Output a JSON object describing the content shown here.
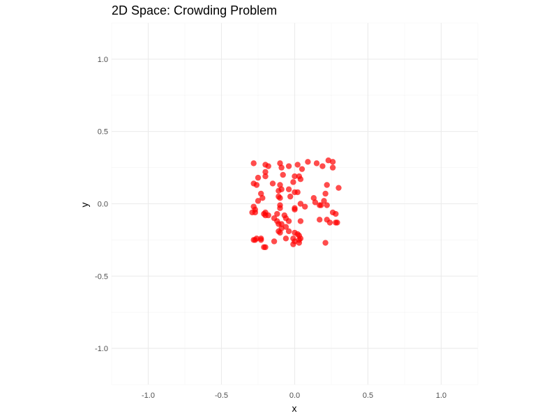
{
  "chart_data": {
    "type": "scatter",
    "title": "2D Space: Crowding Problem",
    "xlabel": "x",
    "ylabel": "y",
    "xlim": [
      -1.25,
      1.25
    ],
    "ylim": [
      -1.25,
      1.25
    ],
    "x_ticks": [
      -1.0,
      -0.5,
      0.0,
      0.5,
      1.0
    ],
    "y_ticks": [
      -1.0,
      -0.5,
      0.0,
      0.5,
      1.0
    ],
    "x_tick_labels": [
      "-1.0",
      "-0.5",
      "0.0",
      "0.5",
      "1.0"
    ],
    "y_tick_labels": [
      "-1.0",
      "-0.5",
      "0.0",
      "0.5",
      "1.0"
    ],
    "grid": true,
    "legend": false,
    "point_color": "#ff0000",
    "series": [
      {
        "points": [
          [
            -0.28,
            0.28
          ],
          [
            -0.2,
            0.27
          ],
          [
            -0.18,
            0.26
          ],
          [
            -0.1,
            0.28
          ],
          [
            -0.09,
            0.25
          ],
          [
            -0.04,
            0.26
          ],
          [
            0.02,
            0.27
          ],
          [
            0.05,
            0.24
          ],
          [
            0.09,
            0.29
          ],
          [
            0.15,
            0.28
          ],
          [
            0.19,
            0.26
          ],
          [
            0.23,
            0.3
          ],
          [
            0.26,
            0.29
          ],
          [
            0.26,
            0.25
          ],
          [
            -0.25,
            0.18
          ],
          [
            -0.2,
            0.22
          ],
          [
            -0.2,
            0.19
          ],
          [
            -0.15,
            0.14
          ],
          [
            -0.08,
            0.2
          ],
          [
            0.0,
            0.19
          ],
          [
            0.03,
            0.19
          ],
          [
            -0.01,
            0.15
          ],
          [
            0.04,
            0.17
          ],
          [
            0.22,
            0.13
          ],
          [
            0.3,
            0.11
          ],
          [
            -0.28,
            0.14
          ],
          [
            -0.26,
            0.13
          ],
          [
            -0.1,
            0.13
          ],
          [
            -0.09,
            0.1
          ],
          [
            -0.11,
            0.09
          ],
          [
            -0.04,
            0.1
          ],
          [
            0.0,
            0.08
          ],
          [
            0.02,
            0.08
          ],
          [
            0.21,
            0.07
          ],
          [
            -0.23,
            0.07
          ],
          [
            -0.22,
            0.04
          ],
          [
            -0.25,
            0.02
          ],
          [
            -0.11,
            0.05
          ],
          [
            -0.1,
            0.04
          ],
          [
            -0.03,
            0.05
          ],
          [
            0.13,
            0.04
          ],
          [
            0.14,
            0.01
          ],
          [
            0.2,
            0.02
          ],
          [
            -0.28,
            -0.02
          ],
          [
            -0.27,
            -0.04
          ],
          [
            -0.1,
            -0.01
          ],
          [
            -0.1,
            -0.03
          ],
          [
            0.0,
            -0.04
          ],
          [
            0.0,
            -0.03
          ],
          [
            0.04,
            0.0
          ],
          [
            0.07,
            -0.02
          ],
          [
            0.17,
            -0.01
          ],
          [
            0.18,
            -0.01
          ],
          [
            0.22,
            -0.01
          ],
          [
            -0.29,
            -0.06
          ],
          [
            -0.27,
            -0.06
          ],
          [
            -0.21,
            -0.07
          ],
          [
            -0.2,
            -0.06
          ],
          [
            -0.2,
            -0.08
          ],
          [
            -0.18,
            -0.08
          ],
          [
            -0.14,
            -0.1
          ],
          [
            -0.12,
            -0.07
          ],
          [
            -0.07,
            -0.08
          ],
          [
            -0.06,
            -0.1
          ],
          [
            -0.04,
            -0.12
          ],
          [
            0.04,
            -0.12
          ],
          [
            0.17,
            -0.11
          ],
          [
            0.22,
            -0.11
          ],
          [
            0.24,
            -0.13
          ],
          [
            0.26,
            -0.06
          ],
          [
            0.28,
            -0.13
          ],
          [
            0.29,
            -0.13
          ],
          [
            0.28,
            -0.07
          ],
          [
            -0.12,
            -0.12
          ],
          [
            -0.11,
            -0.14
          ],
          [
            -0.09,
            -0.14
          ],
          [
            -0.06,
            -0.16
          ],
          [
            -0.09,
            -0.17
          ],
          [
            -0.11,
            -0.19
          ],
          [
            -0.1,
            -0.2
          ],
          [
            -0.04,
            -0.19
          ],
          [
            -0.06,
            -0.24
          ],
          [
            0.0,
            -0.2
          ],
          [
            0.02,
            -0.21
          ],
          [
            0.03,
            -0.22
          ],
          [
            -0.28,
            -0.25
          ],
          [
            -0.27,
            -0.25
          ],
          [
            -0.26,
            -0.24
          ],
          [
            -0.23,
            -0.24
          ],
          [
            -0.23,
            -0.25
          ],
          [
            -0.14,
            -0.26
          ],
          [
            -0.21,
            -0.3
          ],
          [
            -0.01,
            -0.24
          ],
          [
            0.0,
            -0.26
          ],
          [
            -0.01,
            -0.28
          ],
          [
            0.03,
            -0.25
          ],
          [
            0.03,
            -0.27
          ],
          [
            0.04,
            -0.24
          ],
          [
            0.21,
            -0.27
          ],
          [
            -0.2,
            -0.3
          ]
        ]
      }
    ]
  }
}
